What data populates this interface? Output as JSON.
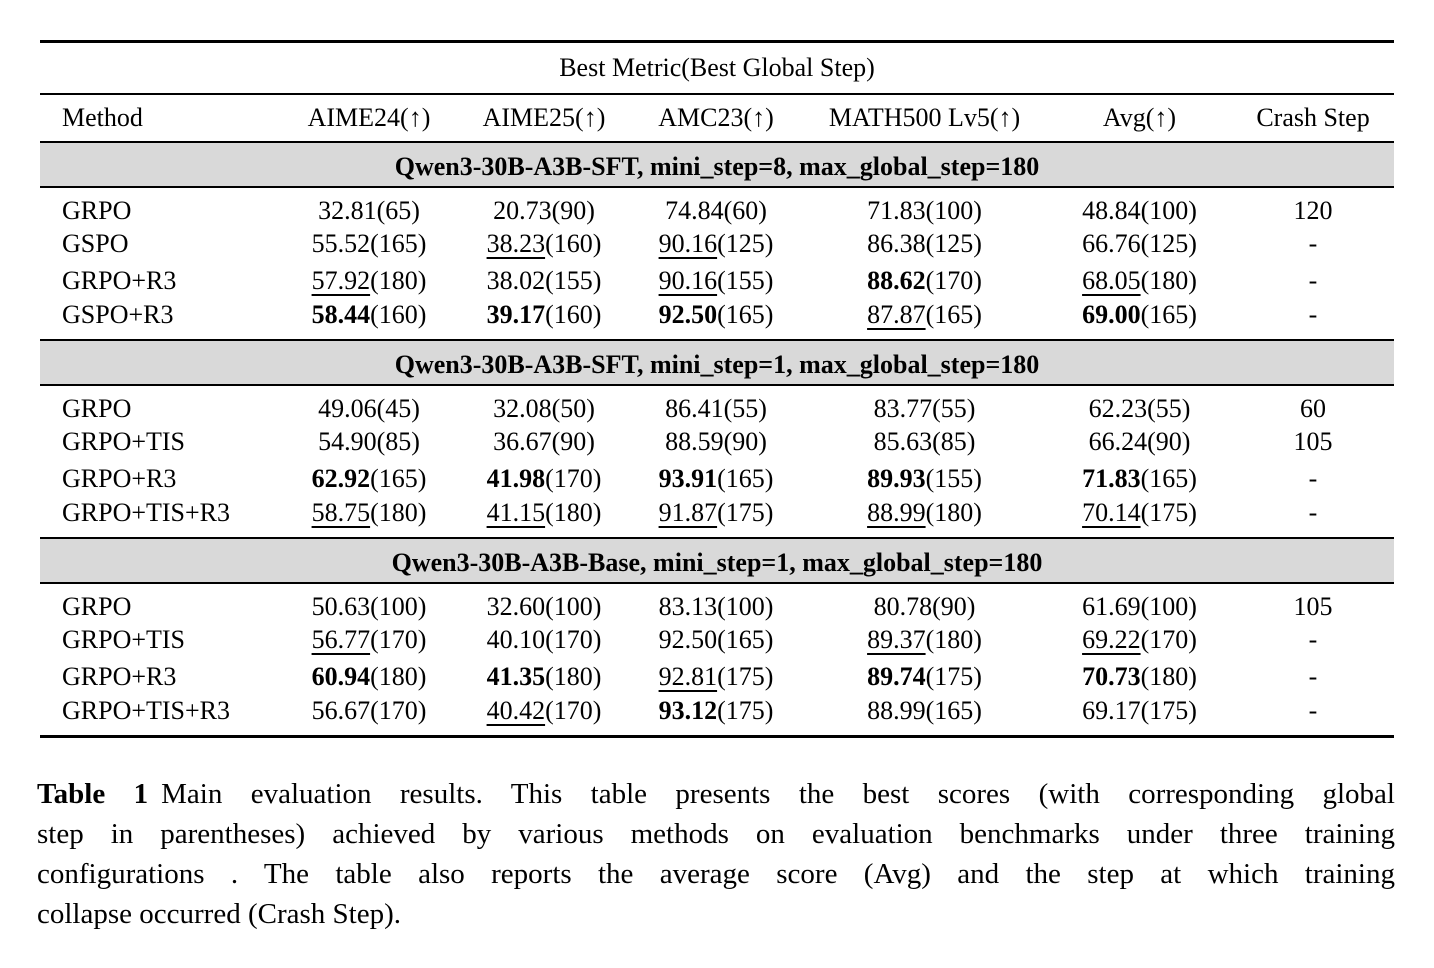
{
  "table": {
    "title": "Best Metric(Best Global Step)",
    "columns": [
      "Method",
      "AIME24(↑)",
      "AIME25(↑)",
      "AMC23(↑)",
      "MATH500 Lv5(↑)",
      "Avg(↑)",
      "Crash Step"
    ],
    "sections": [
      {
        "header": "Qwen3-30B-A3B-SFT, mini_step=8, max_global_step=180",
        "rows": [
          {
            "method": "GRPO",
            "scores": [
              {
                "v": "32.81",
                "s": "(65)",
                "f": "n"
              },
              {
                "v": "20.73",
                "s": "(90)",
                "f": "n"
              },
              {
                "v": "74.84",
                "s": "(60)",
                "f": "n"
              },
              {
                "v": "71.83",
                "s": "(100)",
                "f": "n"
              },
              {
                "v": "48.84",
                "s": "(100)",
                "f": "n"
              }
            ],
            "crash": "120"
          },
          {
            "method": "GSPO",
            "scores": [
              {
                "v": "55.52",
                "s": "(165)",
                "f": "n"
              },
              {
                "v": "38.23",
                "s": "(160)",
                "f": "u"
              },
              {
                "v": "90.16",
                "s": "(125)",
                "f": "u"
              },
              {
                "v": "86.38",
                "s": "(125)",
                "f": "n"
              },
              {
                "v": "66.76",
                "s": "(125)",
                "f": "n"
              }
            ],
            "crash": "-"
          },
          {
            "method": "GRPO+R3",
            "scores": [
              {
                "v": "57.92",
                "s": "(180)",
                "f": "u"
              },
              {
                "v": "38.02",
                "s": "(155)",
                "f": "n"
              },
              {
                "v": "90.16",
                "s": "(155)",
                "f": "u"
              },
              {
                "v": "88.62",
                "s": "(170)",
                "f": "b"
              },
              {
                "v": "68.05",
                "s": "(180)",
                "f": "u"
              }
            ],
            "crash": "-"
          },
          {
            "method": "GSPO+R3",
            "scores": [
              {
                "v": "58.44",
                "s": "(160)",
                "f": "b"
              },
              {
                "v": "39.17",
                "s": "(160)",
                "f": "b"
              },
              {
                "v": "92.50",
                "s": "(165)",
                "f": "b"
              },
              {
                "v": "87.87",
                "s": "(165)",
                "f": "u"
              },
              {
                "v": "69.00",
                "s": "(165)",
                "f": "b"
              }
            ],
            "crash": "-"
          }
        ]
      },
      {
        "header": "Qwen3-30B-A3B-SFT, mini_step=1, max_global_step=180",
        "rows": [
          {
            "method": "GRPO",
            "scores": [
              {
                "v": "49.06",
                "s": "(45)",
                "f": "n"
              },
              {
                "v": "32.08",
                "s": "(50)",
                "f": "n"
              },
              {
                "v": "86.41",
                "s": "(55)",
                "f": "n"
              },
              {
                "v": "83.77",
                "s": "(55)",
                "f": "n"
              },
              {
                "v": "62.23",
                "s": "(55)",
                "f": "n"
              }
            ],
            "crash": "60"
          },
          {
            "method": "GRPO+TIS",
            "scores": [
              {
                "v": "54.90",
                "s": "(85)",
                "f": "n"
              },
              {
                "v": "36.67",
                "s": "(90)",
                "f": "n"
              },
              {
                "v": "88.59",
                "s": "(90)",
                "f": "n"
              },
              {
                "v": "85.63",
                "s": "(85)",
                "f": "n"
              },
              {
                "v": "66.24",
                "s": "(90)",
                "f": "n"
              }
            ],
            "crash": "105"
          },
          {
            "method": "GRPO+R3",
            "scores": [
              {
                "v": "62.92",
                "s": "(165)",
                "f": "b"
              },
              {
                "v": "41.98",
                "s": "(170)",
                "f": "b"
              },
              {
                "v": "93.91",
                "s": "(165)",
                "f": "b"
              },
              {
                "v": "89.93",
                "s": "(155)",
                "f": "b"
              },
              {
                "v": "71.83",
                "s": "(165)",
                "f": "b"
              }
            ],
            "crash": "-"
          },
          {
            "method": "GRPO+TIS+R3",
            "scores": [
              {
                "v": "58.75",
                "s": "(180)",
                "f": "u"
              },
              {
                "v": "41.15",
                "s": "(180)",
                "f": "u"
              },
              {
                "v": "91.87",
                "s": "(175)",
                "f": "u"
              },
              {
                "v": "88.99",
                "s": "(180)",
                "f": "u"
              },
              {
                "v": "70.14",
                "s": "(175)",
                "f": "u"
              }
            ],
            "crash": "-"
          }
        ]
      },
      {
        "header": "Qwen3-30B-A3B-Base, mini_step=1, max_global_step=180",
        "rows": [
          {
            "method": "GRPO",
            "scores": [
              {
                "v": "50.63",
                "s": "(100)",
                "f": "n"
              },
              {
                "v": "32.60",
                "s": "(100)",
                "f": "n"
              },
              {
                "v": "83.13",
                "s": "(100)",
                "f": "n"
              },
              {
                "v": "80.78",
                "s": "(90)",
                "f": "n"
              },
              {
                "v": "61.69",
                "s": "(100)",
                "f": "n"
              }
            ],
            "crash": "105"
          },
          {
            "method": "GRPO+TIS",
            "scores": [
              {
                "v": "56.77",
                "s": "(170)",
                "f": "u"
              },
              {
                "v": "40.10",
                "s": "(170)",
                "f": "n"
              },
              {
                "v": "92.50",
                "s": "(165)",
                "f": "n"
              },
              {
                "v": "89.37",
                "s": "(180)",
                "f": "u"
              },
              {
                "v": "69.22",
                "s": "(170)",
                "f": "u"
              }
            ],
            "crash": "-"
          },
          {
            "method": "GRPO+R3",
            "scores": [
              {
                "v": "60.94",
                "s": "(180)",
                "f": "b"
              },
              {
                "v": "41.35",
                "s": "(180)",
                "f": "b"
              },
              {
                "v": "92.81",
                "s": "(175)",
                "f": "u"
              },
              {
                "v": "89.74",
                "s": "(175)",
                "f": "b"
              },
              {
                "v": "70.73",
                "s": "(180)",
                "f": "b"
              }
            ],
            "crash": "-"
          },
          {
            "method": "GRPO+TIS+R3",
            "scores": [
              {
                "v": "56.67",
                "s": "(170)",
                "f": "n"
              },
              {
                "v": "40.42",
                "s": "(170)",
                "f": "u"
              },
              {
                "v": "93.12",
                "s": "(175)",
                "f": "b"
              },
              {
                "v": "88.99",
                "s": "(165)",
                "f": "n"
              },
              {
                "v": "69.17",
                "s": "(175)",
                "f": "n"
              }
            ],
            "crash": "-"
          }
        ]
      }
    ]
  },
  "caption": {
    "label": "Table 1",
    "lines": [
      "Main evaluation results. This table presents the best scores (with corresponding global",
      "step in parentheses) achieved by various methods on evaluation benchmarks under three training",
      "configurations . The table also reports the average score (Avg) and the step at which training",
      "collapse occurred (Crash Step)."
    ]
  },
  "colors": {
    "section_bg": "#d9d9d9",
    "text": "#000000",
    "background": "#ffffff",
    "rule": "#000000"
  }
}
